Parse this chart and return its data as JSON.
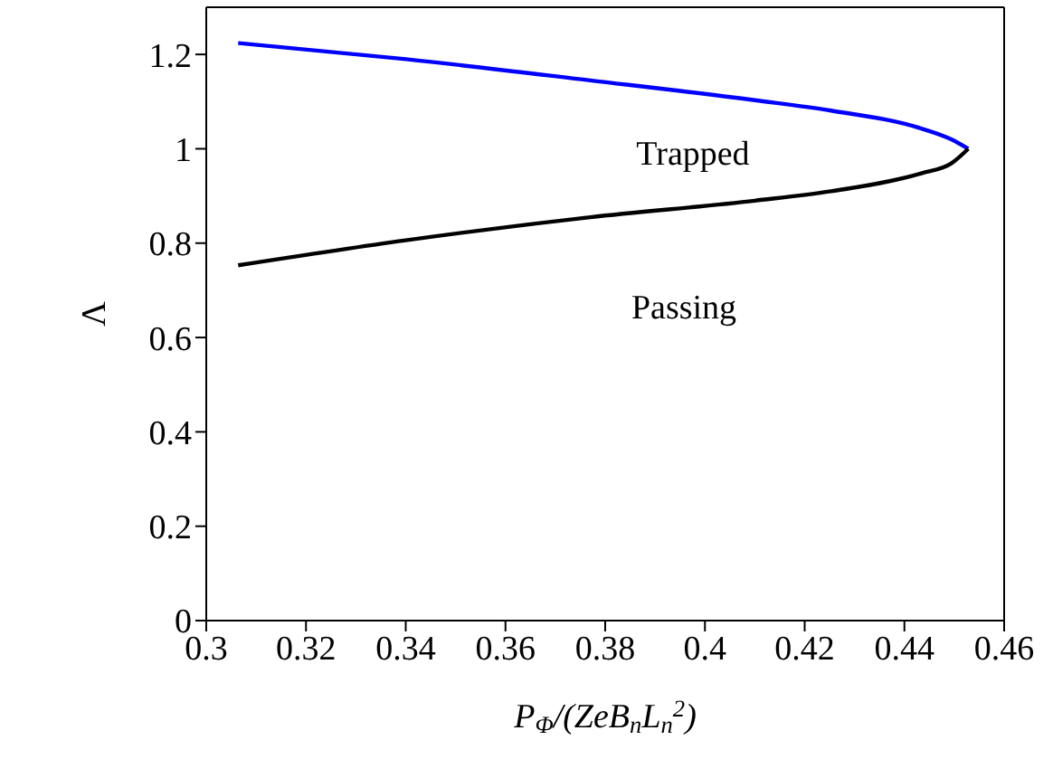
{
  "chart_data": {
    "type": "line",
    "xlabel": "P$_{Φ}$/(ZeB$_{n}$L$_{n}$$^{2}$)",
    "ylabel": "Λ",
    "xlim": [
      0.3,
      0.46
    ],
    "xticks": [
      0.3,
      0.32,
      0.34,
      0.36,
      0.38,
      0.4,
      0.42,
      0.44,
      0.46
    ],
    "ylim": [
      0,
      1.3
    ],
    "yticks": [
      0,
      0.2,
      0.4,
      0.6,
      0.8,
      1,
      1.2
    ],
    "grid": false,
    "marker": "none",
    "line_style": "solid",
    "series": [
      {
        "color": "#0000ff",
        "x": [
          0.3064,
          0.34,
          0.377,
          0.41,
          0.4253,
          0.4434,
          0.4494,
          0.4528
        ],
        "values": [
          1.224,
          1.19,
          1.145,
          1.103,
          1.081,
          1.043,
          1.02,
          1.0
        ]
      },
      {
        "color": "#000000",
        "x": [
          0.3064,
          0.34,
          0.377,
          0.41,
          0.4253,
          0.4434,
          0.4494,
          0.4528
        ],
        "values": [
          0.753,
          0.806,
          0.855,
          0.89,
          0.91,
          0.948,
          0.969,
          1.0
        ]
      }
    ],
    "annotations": [
      "Trapped",
      "Passing"
    ]
  }
}
